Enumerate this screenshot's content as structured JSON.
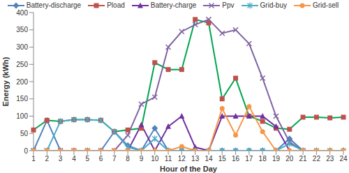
{
  "chart_data": {
    "type": "line",
    "x_label": "Hour of the Day",
    "y_label": "Energy (kWh)",
    "categories": [
      "1",
      "2",
      "3",
      "4",
      "5",
      "6",
      "7",
      "8",
      "9",
      "10",
      "11",
      "12",
      "13",
      "14",
      "15",
      "16",
      "17",
      "18",
      "19",
      "20",
      "21",
      "22",
      "23",
      "24"
    ],
    "ylim": [
      0,
      400
    ],
    "yticks": [
      0,
      50,
      100,
      150,
      200,
      250,
      300,
      350,
      400
    ],
    "grid": false,
    "legend": "top",
    "series": [
      {
        "name": "Battery-discharge",
        "color": "#4f81bd",
        "marker": "diamond",
        "values": [
          0,
          88,
          0,
          0,
          0,
          0,
          55,
          15,
          0,
          65,
          0,
          0,
          0,
          0,
          0,
          0,
          0,
          0,
          0,
          35,
          0,
          0,
          0,
          0
        ]
      },
      {
        "name": "Pload",
        "color": "#c0504d",
        "marker": "square",
        "values": [
          60,
          88,
          85,
          90,
          90,
          88,
          55,
          60,
          65,
          255,
          235,
          235,
          380,
          370,
          150,
          210,
          100,
          85,
          65,
          62,
          97,
          97,
          95,
          97
        ]
      },
      {
        "name": "Battery-charge",
        "color": "#7030a0",
        "marker": "triangle",
        "values": [
          0,
          0,
          0,
          0,
          0,
          0,
          0,
          0,
          75,
          0,
          70,
          100,
          10,
          0,
          100,
          100,
          100,
          100,
          70,
          0,
          0,
          0,
          0,
          0
        ]
      },
      {
        "name": "Ppv",
        "color": "#8064a2",
        "marker": "x",
        "values": [
          0,
          0,
          0,
          0,
          0,
          0,
          0,
          45,
          135,
          155,
          300,
          345,
          365,
          380,
          340,
          350,
          310,
          210,
          100,
          25,
          0,
          null,
          null,
          null
        ]
      },
      {
        "name": "Grid-buy",
        "color": "#4bacc6",
        "marker": "star",
        "values": [
          0,
          0,
          85,
          90,
          90,
          88,
          55,
          10,
          0,
          35,
          0,
          0,
          0,
          0,
          0,
          0,
          0,
          0,
          0,
          20,
          0,
          0,
          0,
          0
        ]
      },
      {
        "name": "Grid-sell",
        "color": "#f79646",
        "marker": "circle",
        "values": [
          0,
          0,
          0,
          0,
          0,
          0,
          0,
          0,
          0,
          0,
          0,
          12,
          0,
          0,
          122,
          45,
          128,
          55,
          0,
          0,
          0,
          0,
          0,
          0
        ]
      }
    ]
  }
}
